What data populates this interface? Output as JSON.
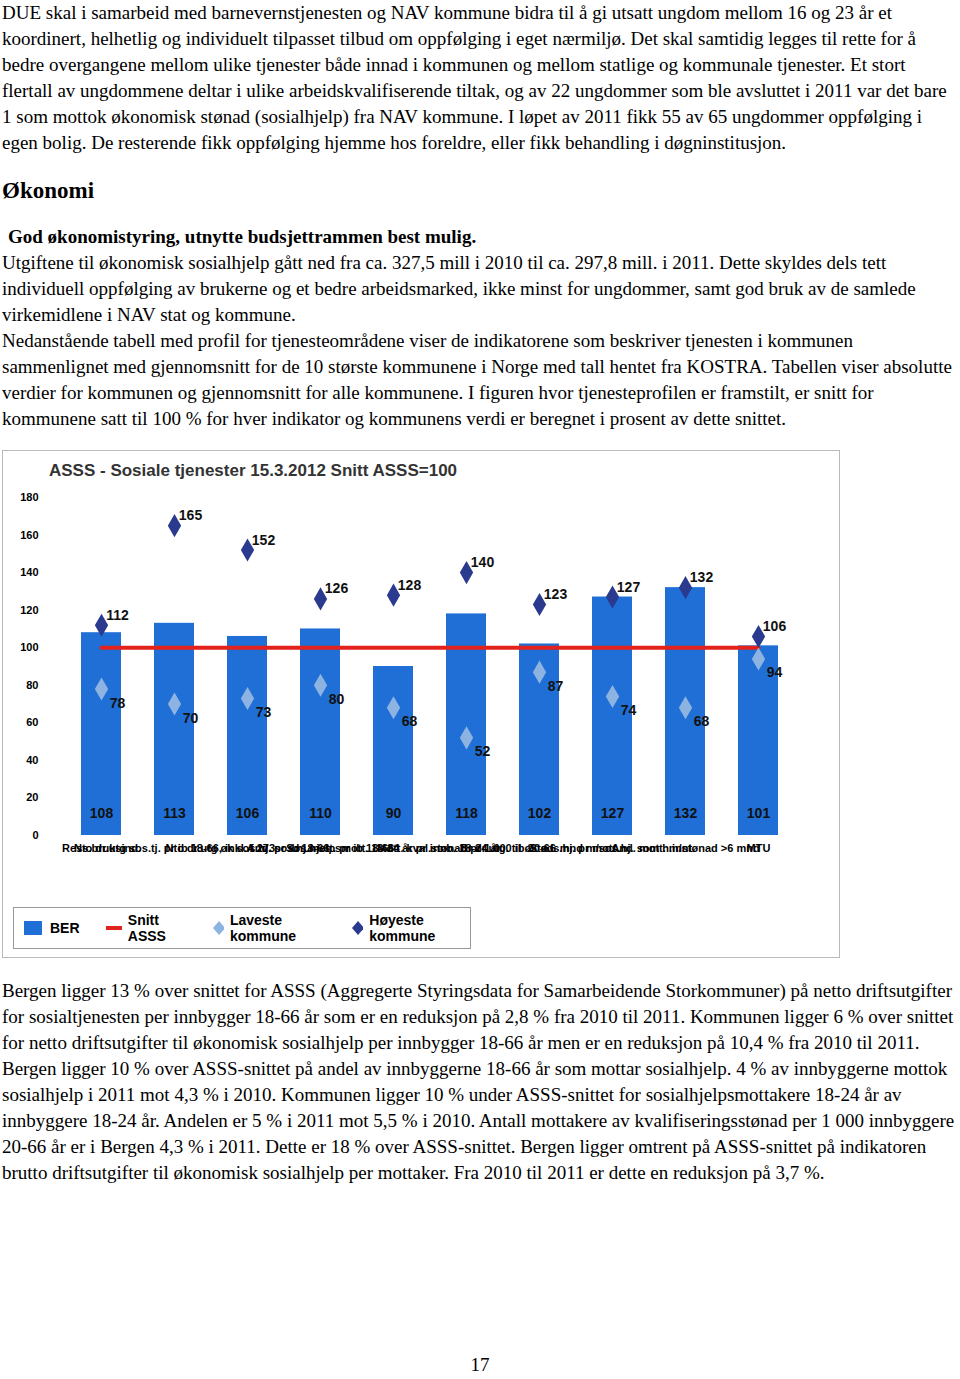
{
  "paragraphs_top": [
    "DUE skal i samarbeid med barnevernstjenesten og NAV kommune bidra til å gi utsatt ungdom mellom 16 og 23 år et koordinert, helhetlig og individuelt tilpasset tilbud om oppfølging i eget nærmiljø. Det skal samtidig legges til rette for å bedre overgangene mellom ulike tjenester både innad i kommunen og mellom statlige og kommunale tjenester. Et stort flertall av ungdommene deltar i ulike arbeidskvalifiserende tiltak, og av 22 ungdommer som ble avsluttet i 2011 var det bare 1 som mottok økonomisk stønad (sosialhjelp) fra NAV kommune. I løpet av 2011 fikk 55 av 65 ungdommer oppfølging i egen bolig. De resterende fikk oppfølging hjemme hos foreldre, eller fikk behandling i døgninstitusjon."
  ],
  "heading": "Økonomi",
  "subheading": "God økonomistyring, utnytte budsjettrammen best mulig.",
  "paragraphs_middle": [
    "Utgiftene til økonomisk sosialhjelp gått ned fra ca. 327,5 mill i 2010 til ca. 297,8 mill. i 2011. Dette skyldes dels tett individuell oppfølging av brukerne og et bedre arbeidsmarked, ikke minst for ungdommer, samt god bruk av de samlede virkemidlene i NAV stat og kommune.",
    "Nedanstående tabell med profil for tjenesteområdene viser de indikatorene som beskriver tjenesten i kommunen sammenlignet med gjennomsnitt for de 10 største kommunene i Norge med tall hentet fra KOSTRA. Tabellen viser absolutte verdier for kommunen og gjennomsnitt for alle kommunene. I figuren hvor tjenesteprofilen er framstilt, er snitt for kommunene satt til 100 % for hver indikator og kommunens verdi er beregnet i prosent av dette snittet."
  ],
  "chart_data": {
    "type": "bar",
    "title": "ASSS - Sosiale tjenester 15.3.2012 Snitt ASSS=100",
    "categories": [
      "Ress.bruksind.",
      "Nto dr.utg sos.tj. pr ib 18-66, inkl. f 273",
      "Nto dr.utg øk sos.hj. pr ib 18-66",
      "And. sos.hj.mott. pr ib 18-66",
      "Sos.hjelpsmott. 18-24 år pr innb. 18-24 år",
      "Mott. kval.stønad pr 1 000 ib 20-66",
      "Br dr.utg. til øk sos.hj. pr mott.",
      "Stø.l. mnd m/sos.hj. som h.innt.",
      "And. mott. m/stønad >6 mnd",
      "MTU"
    ],
    "series": [
      {
        "name": "BER",
        "type": "bar",
        "color": "#1f6fd6",
        "values": [
          108,
          113,
          106,
          110,
          90,
          118,
          102,
          127,
          132,
          101
        ]
      },
      {
        "name": "Snitt ASSS",
        "type": "line",
        "color": "#e3221b",
        "values": [
          100,
          100,
          100,
          100,
          100,
          100,
          100,
          100,
          100,
          100
        ]
      },
      {
        "name": "Laveste kommune",
        "type": "scatter",
        "marker": "diamond",
        "color": "#8db3e2",
        "values": [
          78,
          70,
          73,
          80,
          68,
          52,
          87,
          74,
          68,
          94
        ]
      },
      {
        "name": "Høyeste kommune",
        "type": "scatter",
        "marker": "diamond",
        "color": "#2a3b8f",
        "values": [
          112,
          165,
          152,
          126,
          128,
          140,
          123,
          127,
          132,
          106
        ]
      }
    ],
    "ylim": [
      0,
      180
    ],
    "yticks": [
      0,
      20,
      40,
      60,
      80,
      100,
      120,
      140,
      160,
      180
    ],
    "grid": false,
    "data_labels": true,
    "legend": "bottom"
  },
  "paragraphs_bottom": [
    "Bergen ligger 13 % over snittet for ASSS (Aggregerte Styringsdata for Samarbeidende Storkommuner) på netto driftsutgifter for sosialtjenesten per innbygger 18-66 år som er en reduksjon på 2,8 % fra 2010 til 2011. Kommunen ligger 6 % over snittet for netto driftsutgifter til økonomisk sosialhjelp per innbygger 18-66 år men er en reduksjon på 10,4 % fra 2010 til 2011. Bergen ligger 10 % over ASSS-snittet på andel av innbyggerne 18-66 år som mottar sosialhjelp. 4 % av innbyggerne mottok sosialhjelp i 2011 mot 4,3 % i 2010. Kommunen ligger 10 % under ASSS-snittet for sosialhjelpsmottakere 18-24 år av innbyggere 18-24 år. Andelen er 5 % i 2011 mot 5,5 % i 2010. Antall mottakere av kvalifiseringsstønad per 1 000 innbyggere 20-66 år er i Bergen 4,3 % i 2011. Dette er 18 % over ASSS-snittet. Bergen ligger omtrent på ASSS-snittet på indikatoren brutto driftsutgifter til økonomisk sosialhjelp per mottaker. Fra 2010 til 2011 er dette en reduksjon på 3,7 %."
  ],
  "page_number": "17"
}
